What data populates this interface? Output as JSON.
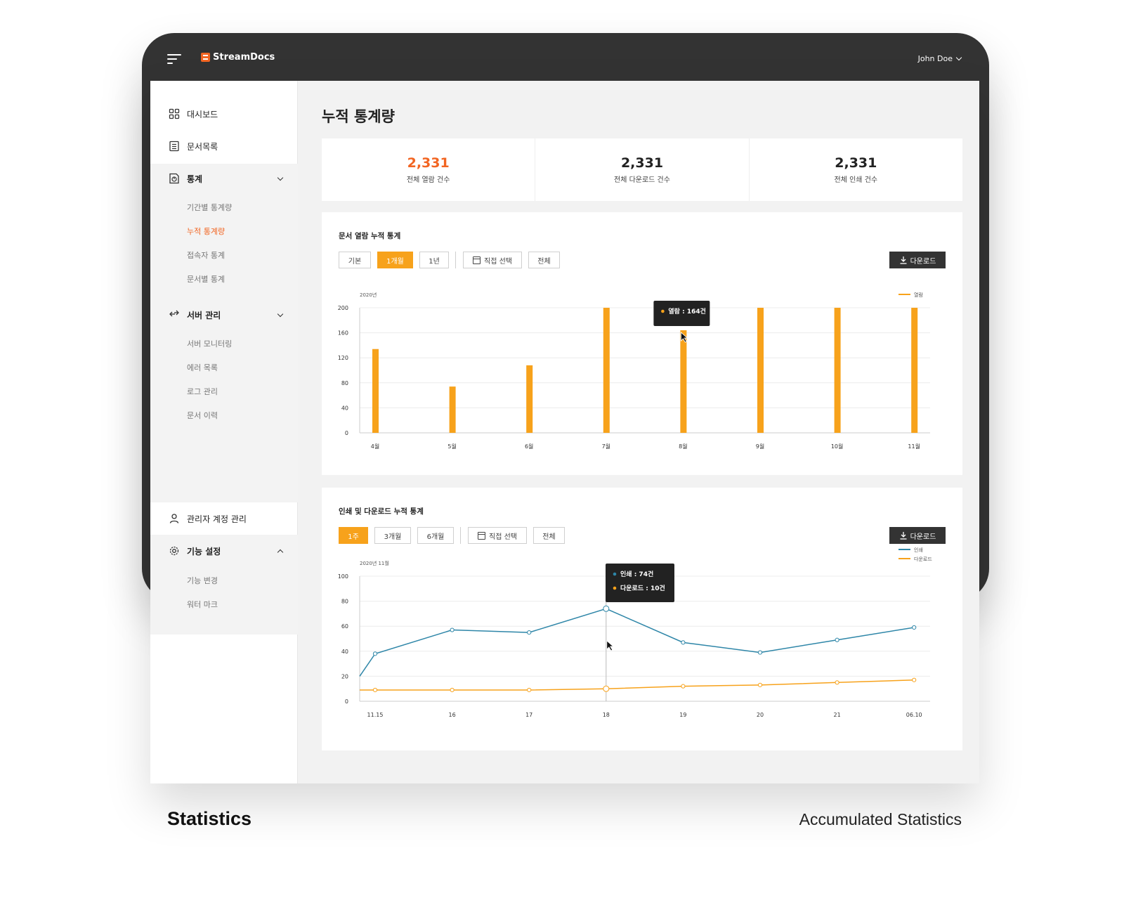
{
  "app": {
    "brand": "StreamDocs",
    "user_name": "John Doe"
  },
  "sidebar": {
    "items": [
      {
        "label": "대시보드"
      },
      {
        "label": "문서목록"
      },
      {
        "label": "통계",
        "sub": [
          "기간별 통계량",
          "누적 통계량",
          "접속자 통계",
          "문서별 통계"
        ],
        "active_sub": "누적 통계량"
      },
      {
        "label": "서버 관리",
        "sub": [
          "서버 모니터링",
          "에러 목록",
          "로그 관리",
          "문서 이력"
        ]
      },
      {
        "label": "관리자 계정 관리"
      },
      {
        "label": "기능 설정",
        "sub": [
          "기능 변경",
          "워터 마크"
        ]
      }
    ]
  },
  "page": {
    "title": "누적 통계량"
  },
  "summary": [
    {
      "value": "2,331",
      "label": "전체 열람 건수",
      "color": "#f26522"
    },
    {
      "value": "2,331",
      "label": "전체 다운로드 건수"
    },
    {
      "value": "2,331",
      "label": "전체 인쇄 건수"
    }
  ],
  "card1": {
    "title": "문서 열람 누적 통계",
    "filters": [
      "기본",
      "1개월",
      "1년"
    ],
    "active_filter": "1개월",
    "custom_label": "직접 선택",
    "all_label": "전체",
    "download_label": "다운로드"
  },
  "card2": {
    "title": "인쇄 및 다운로드 누적 통계",
    "filters": [
      "1주",
      "3개월",
      "6개월"
    ],
    "active_filter": "1주",
    "custom_label": "직접 선택",
    "all_label": "전체",
    "download_label": "다운로드"
  },
  "chart_data": [
    {
      "type": "bar",
      "title": "문서 열람 누적 통계",
      "period_label": "2020년",
      "categories": [
        "4월",
        "5월",
        "6월",
        "7월",
        "8월",
        "9월",
        "10월",
        "11월"
      ],
      "series": [
        {
          "name": "열람",
          "values": [
            134,
            74,
            108,
            200,
            164,
            200,
            200,
            200
          ],
          "color": "#f7a21b"
        }
      ],
      "ylim": [
        0,
        200
      ],
      "yticks": [
        0,
        40,
        80,
        120,
        160,
        200
      ],
      "legend": "top-right",
      "tooltip": {
        "label": "열람",
        "value": "164건",
        "category": "8월"
      },
      "grid": true
    },
    {
      "type": "line",
      "title": "인쇄 및 다운로드 누적 통계",
      "period_label": "2020년 11월",
      "categories": [
        "11.15",
        "16",
        "17",
        "18",
        "19",
        "20",
        "21",
        "06.10"
      ],
      "series": [
        {
          "name": "인쇄",
          "values": [
            38,
            57,
            55,
            74,
            47,
            39,
            49,
            59
          ],
          "color": "#2e86a8"
        },
        {
          "name": "다운로드",
          "values": [
            9,
            9,
            9,
            10,
            12,
            13,
            15,
            17
          ],
          "color": "#f7a21b"
        }
      ],
      "ylim": [
        0,
        100
      ],
      "yticks": [
        0,
        20,
        40,
        60,
        80,
        100
      ],
      "legend": "top-right",
      "tooltip": {
        "category": "18",
        "lines": [
          {
            "label": "인쇄",
            "value": "74건"
          },
          {
            "label": "다운로드",
            "value": "10건"
          }
        ]
      },
      "grid": true
    }
  ],
  "footer": {
    "left": "Statistics",
    "right": "Accumulated Statistics"
  }
}
